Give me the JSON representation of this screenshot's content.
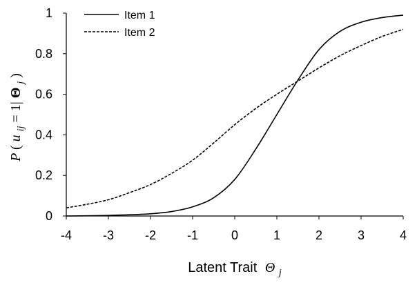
{
  "chart_data": {
    "type": "line",
    "title": "",
    "xlabel": "Latent Trait",
    "xlabel_symbol": "Θ",
    "xlabel_subscript": "j",
    "ylabel": "P(u_ij = 1|Θ_j)",
    "ylabel_parts": {
      "p": "P",
      "open": "(",
      "u": "u",
      "u_sub": "ij",
      "eq": " = 1|",
      "theta": "Θ",
      "theta_sub": "j",
      "close": ")"
    },
    "xlim": [
      -4,
      4
    ],
    "ylim": [
      0,
      1
    ],
    "x_ticks": [
      "-4",
      "-3",
      "-2",
      "-1",
      "0",
      "1",
      "2",
      "3",
      "4"
    ],
    "y_ticks": [
      "0",
      "0.2",
      "0.4",
      "0.6",
      "0.8",
      "1"
    ],
    "grid": false,
    "legend_position": "top-left",
    "x": [
      -4,
      -3.5,
      -3,
      -2.5,
      -2,
      -1.5,
      -1,
      -0.5,
      0,
      0.5,
      1,
      1.5,
      2,
      2.5,
      3,
      3.5,
      4
    ],
    "series": [
      {
        "name": "Item 1",
        "style": "solid",
        "color": "#000000",
        "values": [
          0.0,
          0.001,
          0.003,
          0.006,
          0.011,
          0.022,
          0.045,
          0.09,
          0.18,
          0.33,
          0.5,
          0.67,
          0.82,
          0.91,
          0.955,
          0.978,
          0.99
        ]
      },
      {
        "name": "Item 2",
        "style": "dashed",
        "color": "#000000",
        "values": [
          0.04,
          0.058,
          0.08,
          0.115,
          0.155,
          0.21,
          0.275,
          0.36,
          0.45,
          0.53,
          0.6,
          0.665,
          0.73,
          0.79,
          0.84,
          0.885,
          0.92
        ]
      }
    ]
  }
}
